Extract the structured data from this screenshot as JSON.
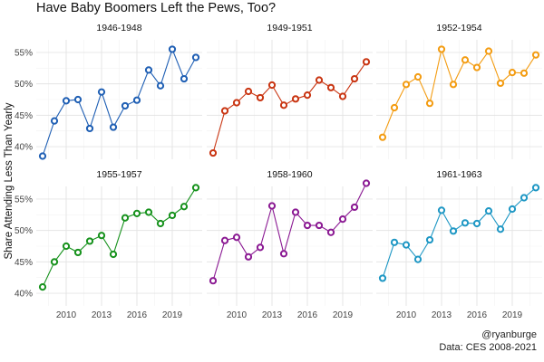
{
  "chart_data": {
    "type": "line",
    "title": "Have Baby Boomers Left the Pews, Too?",
    "ylabel": "Share Attending Less Than Yearly",
    "xlabel": "",
    "x": [
      2008,
      2009,
      2010,
      2011,
      2012,
      2013,
      2014,
      2015,
      2016,
      2017,
      2018,
      2019,
      2020,
      2021
    ],
    "xticks": [
      "2010",
      "2013",
      "2016",
      "2019"
    ],
    "yticks": [
      "40%",
      "45%",
      "50%",
      "55%"
    ],
    "ylim": [
      0.38,
      0.57
    ],
    "grid": true,
    "facets": [
      {
        "label": "1946-1948",
        "color": "#1f5fb4",
        "values": [
          0.385,
          0.441,
          0.473,
          0.475,
          0.429,
          0.487,
          0.431,
          0.465,
          0.474,
          0.522,
          0.497,
          0.555,
          0.508,
          0.542
        ]
      },
      {
        "label": "1949-1951",
        "color": "#c93512",
        "values": [
          0.39,
          0.457,
          0.47,
          0.488,
          0.478,
          0.498,
          0.466,
          0.476,
          0.482,
          0.506,
          0.494,
          0.48,
          0.508,
          0.535
        ]
      },
      {
        "label": "1952-1954",
        "color": "#f39c12",
        "values": [
          0.415,
          0.462,
          0.499,
          0.511,
          0.469,
          0.555,
          0.499,
          0.538,
          0.526,
          0.552,
          0.501,
          0.518,
          0.517,
          0.546
        ]
      },
      {
        "label": "1955-1957",
        "color": "#17921d",
        "values": [
          0.41,
          0.45,
          0.475,
          0.465,
          0.483,
          0.492,
          0.462,
          0.52,
          0.527,
          0.529,
          0.511,
          0.524,
          0.538,
          0.568
        ]
      },
      {
        "label": "1958-1960",
        "color": "#8b1a93",
        "values": [
          0.42,
          0.484,
          0.489,
          0.458,
          0.473,
          0.539,
          0.463,
          0.529,
          0.508,
          0.508,
          0.497,
          0.518,
          0.537,
          0.575
        ]
      },
      {
        "label": "1961-1963",
        "color": "#1e97c4",
        "values": [
          0.424,
          0.481,
          0.477,
          0.454,
          0.485,
          0.532,
          0.499,
          0.512,
          0.511,
          0.531,
          0.502,
          0.534,
          0.552,
          0.568
        ]
      }
    ]
  },
  "caption": {
    "handle": "@ryanburge",
    "source": "Data: CES 2008-2021"
  }
}
